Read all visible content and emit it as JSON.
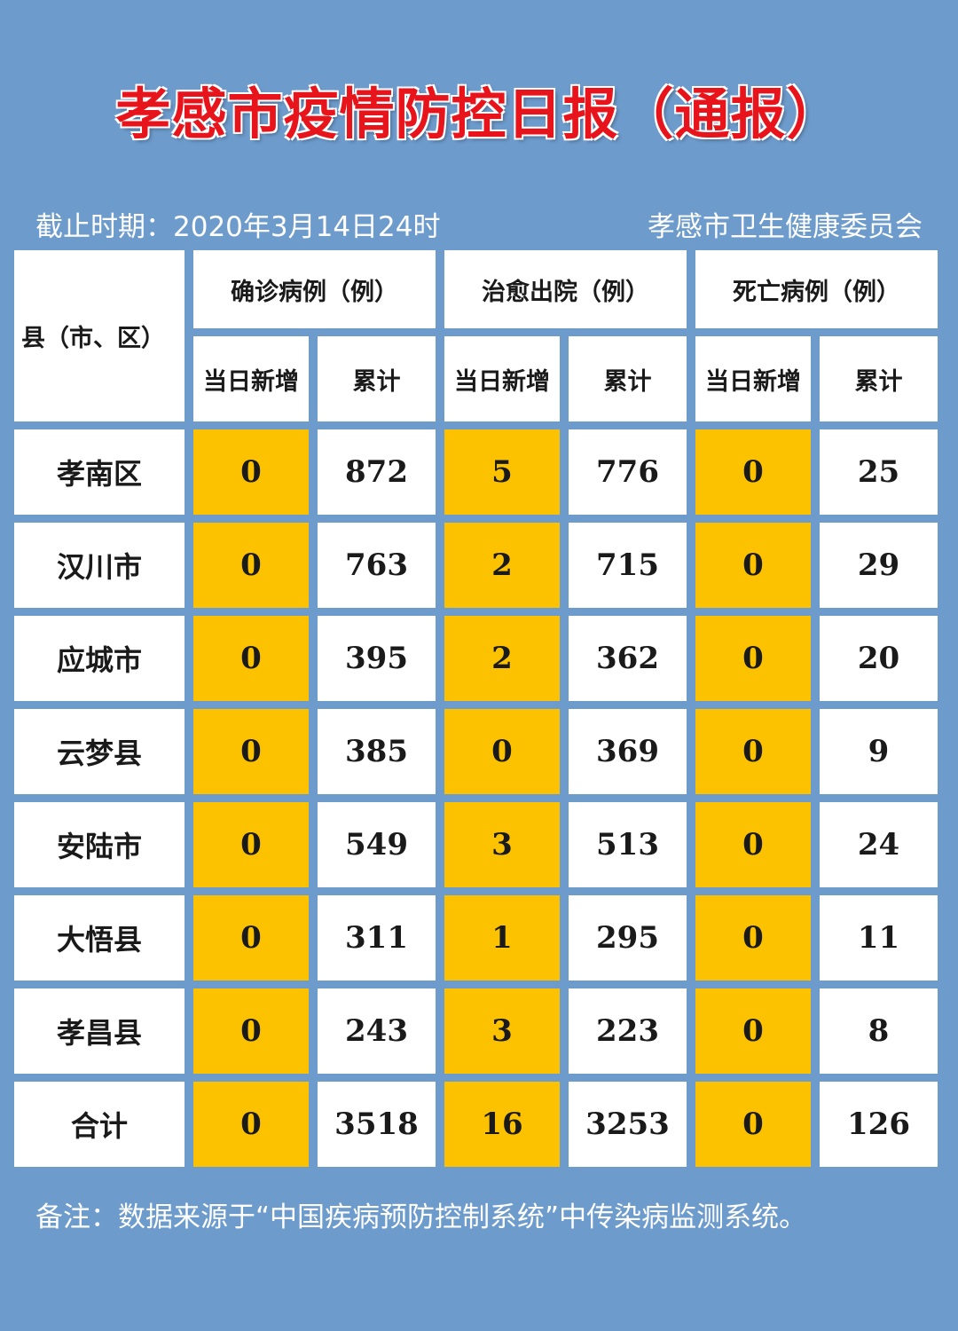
{
  "title": "孝感市疫情防控日报（通报）",
  "cutoff": "截止时期：2020年3月14日24时",
  "publisher": "孝感市卫生健康委员会",
  "header": {
    "region": "县（市、区）",
    "groups": [
      "确诊病例（例）",
      "治愈出院（例）",
      "死亡病例（例）"
    ],
    "sub_new": "当日新增",
    "sub_total": "累计"
  },
  "rows": [
    {
      "region": "孝南区",
      "values": [
        "0",
        "872",
        "5",
        "776",
        "0",
        "25"
      ]
    },
    {
      "region": "汉川市",
      "values": [
        "0",
        "763",
        "2",
        "715",
        "0",
        "29"
      ]
    },
    {
      "region": "应城市",
      "values": [
        "0",
        "395",
        "2",
        "362",
        "0",
        "20"
      ]
    },
    {
      "region": "云梦县",
      "values": [
        "0",
        "385",
        "0",
        "369",
        "0",
        "9"
      ]
    },
    {
      "region": "安陆市",
      "values": [
        "0",
        "549",
        "3",
        "513",
        "0",
        "24"
      ]
    },
    {
      "region": "大悟县",
      "values": [
        "0",
        "311",
        "1",
        "295",
        "0",
        "11"
      ]
    },
    {
      "region": "孝昌县",
      "values": [
        "0",
        "243",
        "3",
        "223",
        "0",
        "8"
      ]
    },
    {
      "region": "合计",
      "values": [
        "0",
        "3518",
        "16",
        "3253",
        "0",
        "126"
      ]
    }
  ],
  "note": "备注：数据来源于“中国疾病预防控制系统”中传染病监测系统。",
  "colors": {
    "background": "#6d9bcc",
    "highlight": "#fcc200",
    "title": "#e8141c"
  }
}
